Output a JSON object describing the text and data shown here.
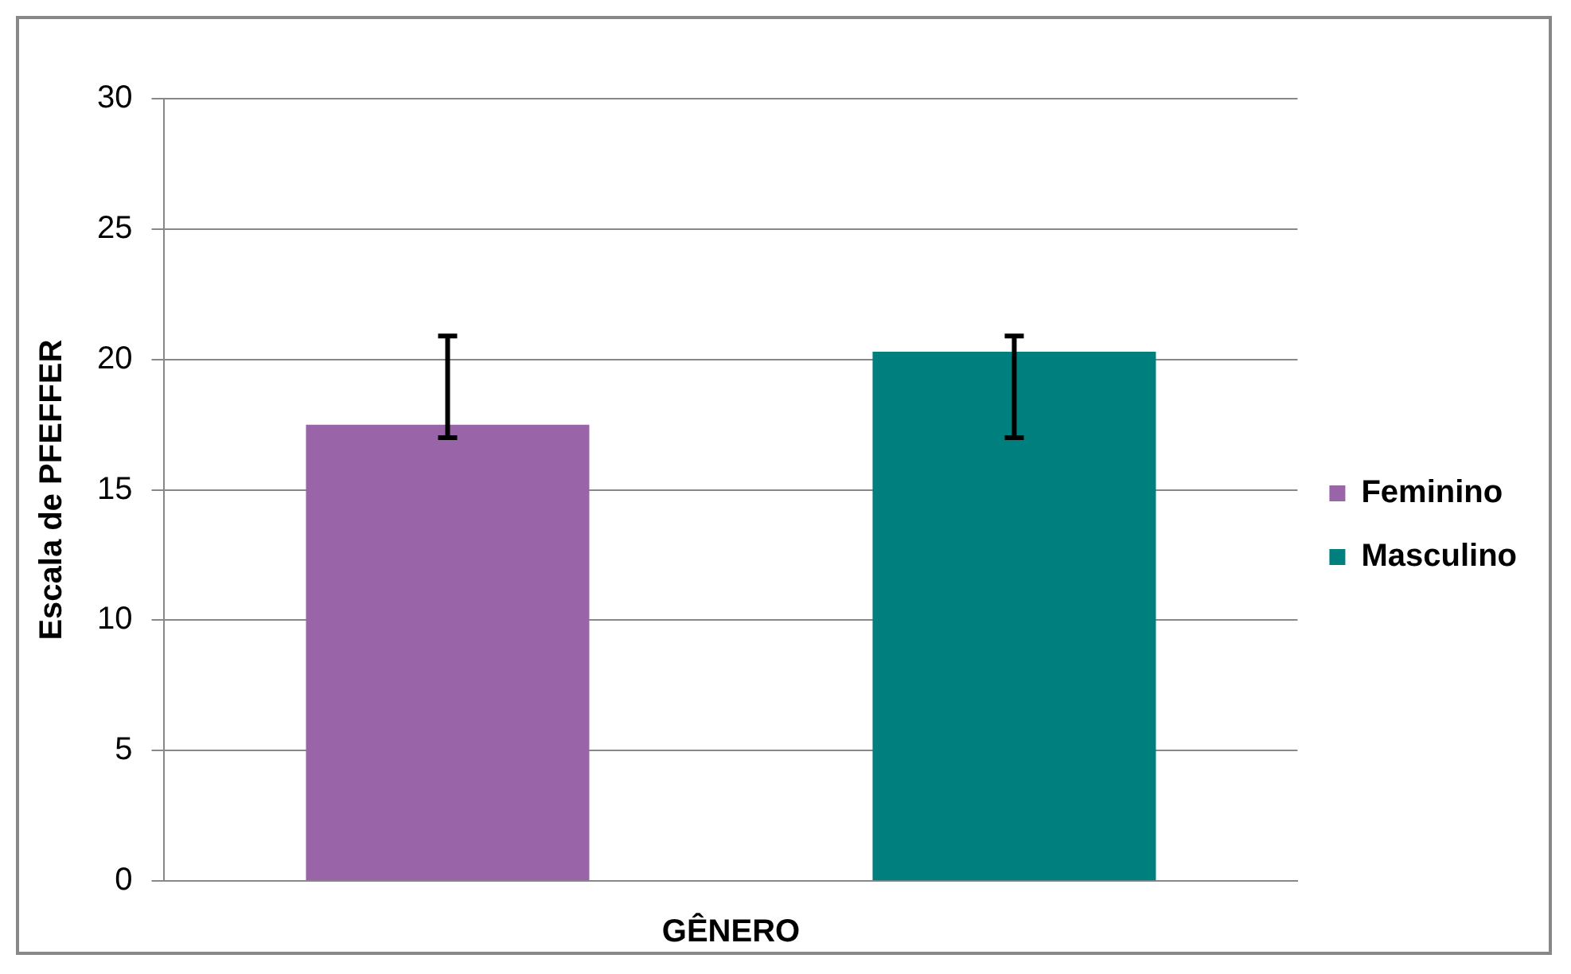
{
  "chart_data": {
    "type": "bar",
    "xlabel": "GÊNERO",
    "ylabel": "Escala de PFEFFER",
    "categories": [
      null
    ],
    "series": [
      {
        "name": "Feminino",
        "color": "#9964a8",
        "values": [
          17.5
        ],
        "errors": [
          [
            17.0,
            20.9
          ]
        ]
      },
      {
        "name": "Masculino",
        "color": "#007f7f",
        "values": [
          20.3
        ],
        "errors": [
          [
            17.0,
            20.9
          ]
        ]
      }
    ],
    "ylim": [
      0,
      30
    ],
    "yticks": [
      0,
      5,
      10,
      15,
      20,
      25,
      30
    ],
    "grid": "y",
    "legend": "right"
  }
}
